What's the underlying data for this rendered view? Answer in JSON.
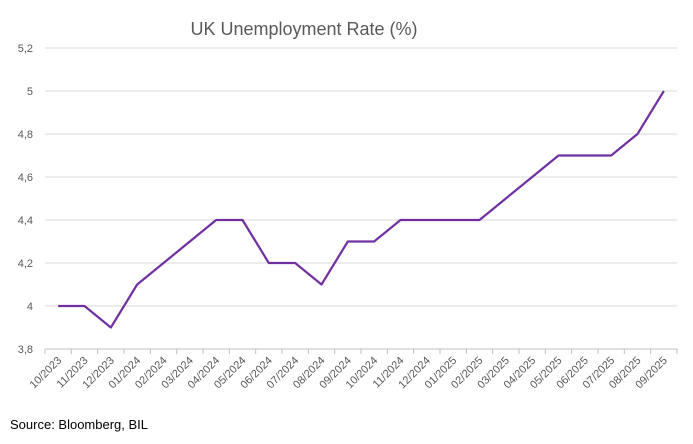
{
  "chart_data": {
    "type": "line",
    "title": "UK Unemployment Rate (%)",
    "xlabel": "",
    "ylabel": "",
    "categories": [
      "10/2023",
      "11/2023",
      "12/2023",
      "01/2024",
      "02/2024",
      "03/2024",
      "04/2024",
      "05/2024",
      "06/2024",
      "07/2024",
      "08/2024",
      "09/2024",
      "10/2024",
      "11/2024",
      "12/2024",
      "01/2025",
      "02/2025",
      "03/2025",
      "04/2025",
      "05/2025",
      "06/2025",
      "07/2025",
      "08/2025",
      "09/2025"
    ],
    "series": [
      {
        "name": "UK Unemployment Rate",
        "color": "#7030A0",
        "values": [
          4.0,
          4.0,
          3.9,
          4.1,
          4.2,
          4.3,
          4.4,
          4.4,
          4.2,
          4.2,
          4.1,
          4.3,
          4.3,
          4.4,
          4.4,
          4.4,
          4.4,
          4.5,
          4.6,
          4.7,
          4.7,
          4.7,
          4.8,
          5.0
        ]
      }
    ],
    "ylim": [
      3.8,
      5.2
    ],
    "yticks": [
      3.8,
      4.0,
      4.2,
      4.4,
      4.6,
      4.8,
      5.0,
      5.2
    ],
    "ytick_labels": [
      "3,8",
      "4",
      "4,2",
      "4,4",
      "4,6",
      "4,8",
      "5",
      "5,2"
    ],
    "grid": true,
    "legend": "none"
  },
  "source": "Source: Bloomberg, BIL"
}
